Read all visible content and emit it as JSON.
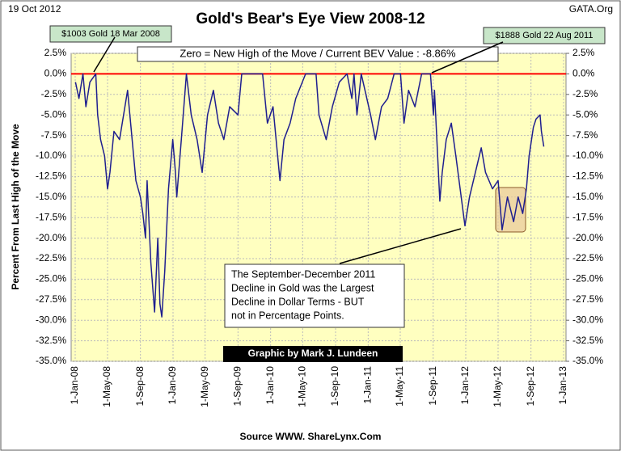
{
  "chart_data": {
    "type": "line",
    "date_label": "19 Oct 2012",
    "title": "Gold's Bear's Eye View 2008-12",
    "site": "GATA.Org",
    "ylabel": "Percent  From Last High of the Move",
    "source": "Source WWW. ShareLynx.Com",
    "credit": "Graphic by Mark J. Lundeen",
    "annotations": [
      "$1003 Gold 18 Mar 2008",
      "$1888 Gold 22 Aug 2011",
      "Zero = New High of the Move / Current  BEV Value : -8.86%",
      [
        "The September-December 2011",
        "Decline in Gold was the Largest",
        "Decline in Dollar Terms - BUT",
        "not in Percentage Points."
      ]
    ],
    "zero_line": {
      "value": 0,
      "color": "#ff0000"
    },
    "grid": true,
    "xlim": [
      "2008-01-01",
      "2013-01-01"
    ],
    "xticks": [
      {
        "value": "2008-01-01",
        "label": "1-Jan-08"
      },
      {
        "value": "2008-05-01",
        "label": "1-May-08"
      },
      {
        "value": "2008-09-01",
        "label": "1-Sep-08"
      },
      {
        "value": "2009-01-01",
        "label": "1-Jan-09"
      },
      {
        "value": "2009-05-01",
        "label": "1-May-09"
      },
      {
        "value": "2009-09-01",
        "label": "1-Sep-09"
      },
      {
        "value": "2010-01-01",
        "label": "1-Jan-10"
      },
      {
        "value": "2010-05-01",
        "label": "1-May-10"
      },
      {
        "value": "2010-09-01",
        "label": "1-Sep-10"
      },
      {
        "value": "2011-01-01",
        "label": "1-Jan-11"
      },
      {
        "value": "2011-05-01",
        "label": "1-May-11"
      },
      {
        "value": "2011-09-01",
        "label": "1-Sep-11"
      },
      {
        "value": "2012-01-01",
        "label": "1-Jan-12"
      },
      {
        "value": "2012-05-01",
        "label": "1-May-12"
      },
      {
        "value": "2012-09-01",
        "label": "1-Sep-12"
      },
      {
        "value": "2013-01-01",
        "label": "1-Jan-13"
      }
    ],
    "ylim": [
      -35,
      2.5
    ],
    "yticks": [
      {
        "value": 2.5,
        "label": "2.5%"
      },
      {
        "value": 0,
        "label": "0.0%"
      },
      {
        "value": -2.5,
        "label": "-2.5%"
      },
      {
        "value": -5,
        "label": "-5.0%"
      },
      {
        "value": -7.5,
        "label": "-7.5%"
      },
      {
        "value": -10,
        "label": "-10.0%"
      },
      {
        "value": -12.5,
        "label": "-12.5%"
      },
      {
        "value": -15,
        "label": "-15.0%"
      },
      {
        "value": -17.5,
        "label": "-17.5%"
      },
      {
        "value": -20,
        "label": "-20.0%"
      },
      {
        "value": -22.5,
        "label": "-22.5%"
      },
      {
        "value": -25,
        "label": "-25.0%"
      },
      {
        "value": -27.5,
        "label": "-27.5%"
      },
      {
        "value": -30,
        "label": "-30.0%"
      },
      {
        "value": -32.5,
        "label": "-32.5%"
      },
      {
        "value": -35,
        "label": "-35.0%"
      }
    ],
    "y2lim": [
      -35,
      2.5
    ],
    "y2ticks": [
      {
        "value": 2.5,
        "label": "2.5%"
      },
      {
        "value": 0,
        "label": "0.0%"
      },
      {
        "value": -2.5,
        "label": "-2.5%"
      },
      {
        "value": -5,
        "label": "-5.0%"
      },
      {
        "value": -7.5,
        "label": "-7.5%"
      },
      {
        "value": -10,
        "label": "-10.0%"
      },
      {
        "value": -12.5,
        "label": "-12.5%"
      },
      {
        "value": -15,
        "label": "-15.0%"
      },
      {
        "value": -17.5,
        "label": "-17.5%"
      },
      {
        "value": -20,
        "label": "-20.0%"
      },
      {
        "value": -22.5,
        "label": "-22.5%"
      },
      {
        "value": -25,
        "label": "-25.0%"
      },
      {
        "value": -27.5,
        "label": "-27.5%"
      },
      {
        "value": -30,
        "label": "-30.0%"
      },
      {
        "value": -32.5,
        "label": "-32.5%"
      },
      {
        "value": -35,
        "label": "-35.0%"
      }
    ],
    "x": [
      "2008-01-02",
      "2008-01-15",
      "2008-01-30",
      "2008-02-10",
      "2008-02-25",
      "2008-03-18",
      "2008-03-25",
      "2008-04-05",
      "2008-04-20",
      "2008-05-01",
      "2008-05-10",
      "2008-05-25",
      "2008-06-15",
      "2008-07-15",
      "2008-08-01",
      "2008-08-15",
      "2008-09-01",
      "2008-09-10",
      "2008-09-20",
      "2008-09-26",
      "2008-10-10",
      "2008-10-24",
      "2008-11-05",
      "2008-11-13",
      "2008-11-20",
      "2008-12-01",
      "2008-12-15",
      "2008-12-31",
      "2009-01-10",
      "2009-01-15",
      "2009-02-01",
      "2009-02-20",
      "2009-03-10",
      "2009-04-01",
      "2009-04-20",
      "2009-05-10",
      "2009-06-01",
      "2009-06-20",
      "2009-07-10",
      "2009-08-01",
      "2009-09-01",
      "2009-09-15",
      "2009-10-15",
      "2009-11-01",
      "2009-12-02",
      "2009-12-20",
      "2010-01-10",
      "2010-02-05",
      "2010-02-20",
      "2010-03-15",
      "2010-04-05",
      "2010-05-12",
      "2010-06-20",
      "2010-07-01",
      "2010-07-28",
      "2010-08-20",
      "2010-09-15",
      "2010-10-14",
      "2010-11-01",
      "2010-11-09",
      "2010-11-20",
      "2010-12-06",
      "2010-12-20",
      "2011-01-10",
      "2011-01-28",
      "2011-02-20",
      "2011-03-15",
      "2011-04-08",
      "2011-05-02",
      "2011-05-15",
      "2011-06-01",
      "2011-06-25",
      "2011-07-20",
      "2011-08-22",
      "2011-09-02",
      "2011-09-06",
      "2011-09-26",
      "2011-10-05",
      "2011-10-20",
      "2011-11-08",
      "2011-11-25",
      "2011-12-15",
      "2011-12-29",
      "2012-01-15",
      "2012-02-28",
      "2012-03-15",
      "2012-04-10",
      "2012-05-01",
      "2012-05-16",
      "2012-06-05",
      "2012-06-28",
      "2012-07-15",
      "2012-08-01",
      "2012-08-15",
      "2012-08-25",
      "2012-09-10",
      "2012-09-20",
      "2012-10-05",
      "2012-10-10",
      "2012-10-19"
    ],
    "series": [
      {
        "name": "BEV",
        "color": "#1f1f8f",
        "values": [
          -1,
          -3,
          0,
          -4,
          -1,
          0,
          -5,
          -8,
          -10,
          -14,
          -12,
          -7,
          -8,
          -2,
          -8,
          -13,
          -15,
          -17,
          -20,
          -13,
          -23,
          -29,
          -20,
          -28,
          -29.6,
          -24,
          -14,
          -8,
          -12,
          -15,
          -8,
          0,
          -5,
          -8,
          -12,
          -5,
          -2,
          -6,
          -8,
          -4,
          -5,
          0,
          0,
          0,
          0,
          -6,
          -4,
          -13,
          -8,
          -6,
          -3,
          0,
          0,
          -5,
          -8,
          -4,
          -1,
          0,
          -3,
          0,
          -5,
          0,
          -2,
          -5,
          -8,
          -4,
          -3,
          0,
          0,
          -6,
          -2,
          -4,
          0,
          0,
          -5,
          -2,
          -15.5,
          -12,
          -8,
          -6,
          -10,
          -15,
          -18.5,
          -15,
          -9,
          -12,
          -14,
          -13,
          -19,
          -15,
          -18,
          -15,
          -17,
          -14,
          -10,
          -6.5,
          -5.5,
          -5,
          -7,
          -8.86
        ]
      }
    ]
  }
}
